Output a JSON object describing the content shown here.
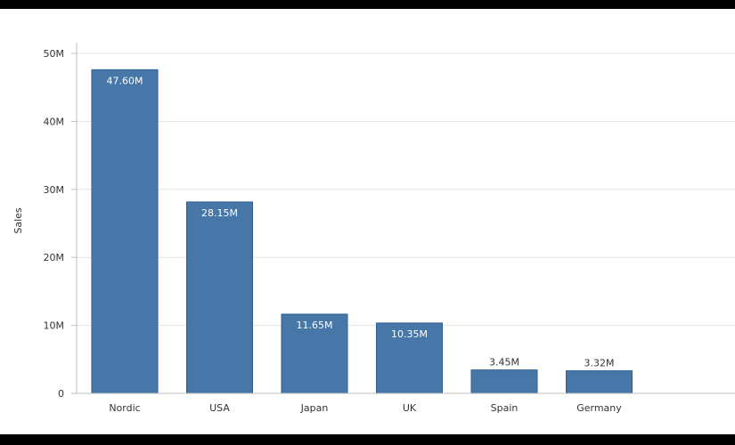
{
  "chart_data": {
    "type": "bar",
    "ylabel": "Sales",
    "ylim": [
      0,
      50
    ],
    "y_unit": "M",
    "yticks": [
      "0",
      "10M",
      "20M",
      "30M",
      "40M",
      "50M"
    ],
    "ytick_values": [
      0,
      10,
      20,
      30,
      40,
      50
    ],
    "categories": [
      "Nordic",
      "USA",
      "Japan",
      "UK",
      "Spain",
      "Germany"
    ],
    "values": [
      47.6,
      28.15,
      11.65,
      10.35,
      3.45,
      3.32
    ],
    "data_labels": [
      "47.60M",
      "28.15M",
      "11.65M",
      "10.35M",
      "3.45M",
      "3.32M"
    ],
    "bar_color": "#4677a8",
    "grid": true,
    "legend": "none"
  }
}
